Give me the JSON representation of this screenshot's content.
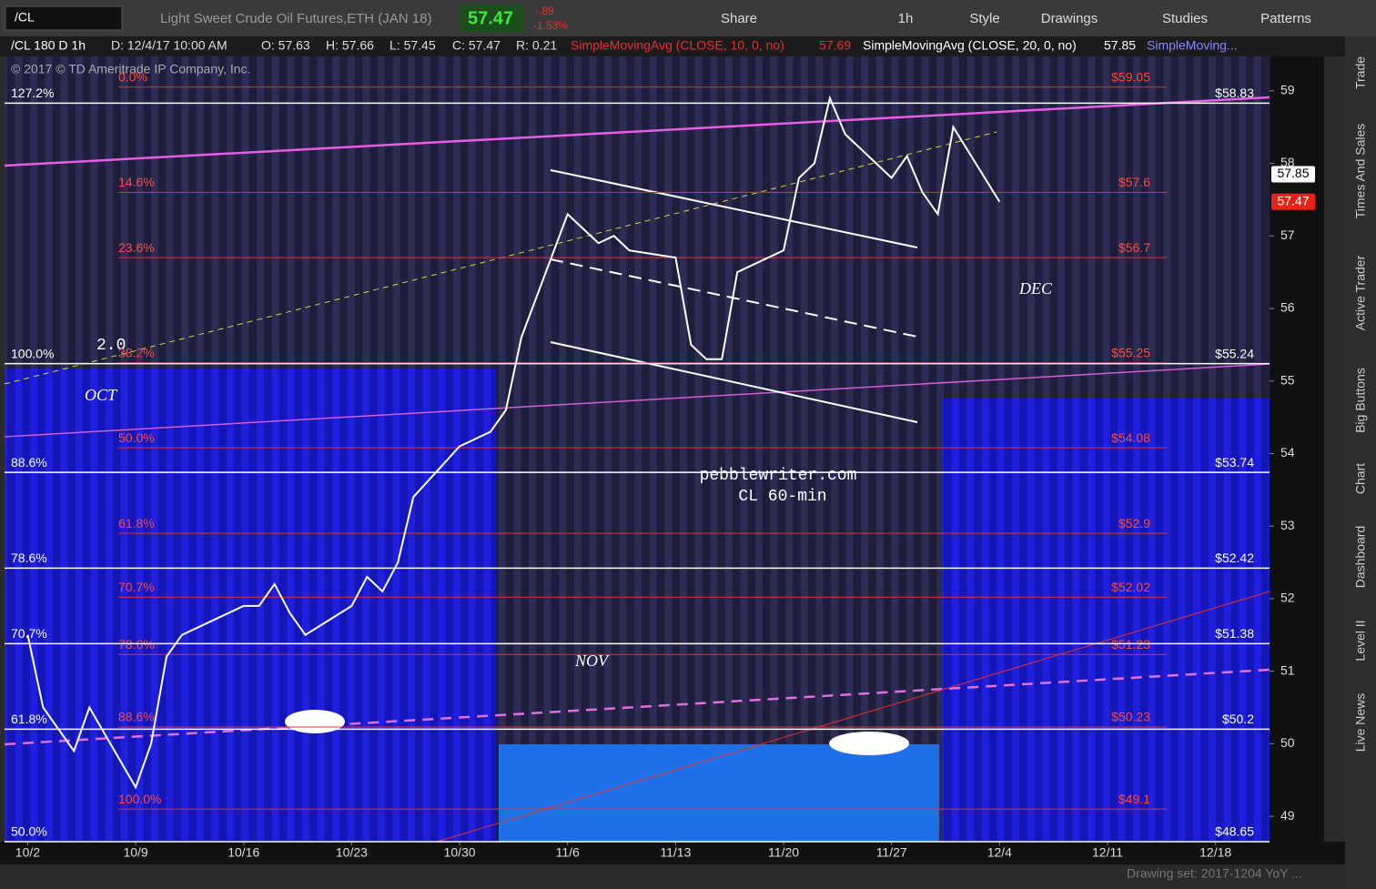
{
  "toolbar": {
    "symbol": "/CL",
    "description": "Light Sweet Crude Oil Futures,ETH (JAN 18)",
    "last": "57.47",
    "change": "-.89",
    "change_pct": "-1.53%",
    "buttons": [
      "Share",
      "1h",
      "Style",
      "Drawings",
      "Studies",
      "Patterns"
    ]
  },
  "header": {
    "items": [
      "/CL 180 D 1h",
      "D: 12/4/17 10:00 AM",
      "O: 57.63",
      "H: 57.66",
      "L: 57.45",
      "C: 57.47",
      "R: 0.21"
    ],
    "studies": [
      {
        "name": "SimpleMovingAvg (CLOSE, 10, 0, no)",
        "value": "57.69"
      },
      {
        "name": "SimpleMovingAvg (CLOSE, 20, 0, no)",
        "value": "57.85"
      }
    ],
    "more": "SimpleMoving..."
  },
  "copyright": "© 2017 © TD Ameritrade IP Company, Inc.",
  "side_tabs": [
    "Trade",
    "Times And Sales",
    "Active Trader",
    "Big Buttons",
    "Chart",
    "Dashboard",
    "Level II",
    "Live News"
  ],
  "footer": "Drawing set: 2017-1204 YoY ...",
  "chart_data": {
    "type": "line",
    "x": [
      0,
      1,
      2,
      3,
      4,
      7,
      8,
      9,
      10,
      11,
      14,
      15,
      16,
      17,
      18,
      21,
      22,
      23,
      24,
      25,
      28,
      29,
      30,
      31,
      32,
      35,
      36,
      37,
      38,
      39,
      42,
      43,
      44,
      45,
      46,
      49,
      50,
      51,
      52,
      53,
      56,
      57,
      58,
      59,
      60,
      63
    ],
    "series": [
      {
        "color": "#ffffff",
        "values": [
          51.5,
          50.5,
          50.2,
          49.9,
          50.5,
          49.4,
          50.0,
          51.2,
          51.5,
          51.6,
          51.9,
          51.9,
          52.2,
          51.8,
          51.5,
          51.9,
          52.3,
          52.1,
          52.5,
          53.4,
          54.1,
          54.2,
          54.3,
          54.6,
          55.6,
          57.3,
          57.1,
          56.9,
          57.0,
          56.8,
          56.7,
          55.5,
          55.3,
          55.3,
          56.5,
          56.8,
          57.8,
          58.0,
          58.9,
          58.4,
          57.8,
          58.1,
          57.6,
          57.3,
          58.5,
          57.47
        ]
      }
    ],
    "xlim": [
      -1.5,
      80.5
    ],
    "xticks": [
      {
        "value": 0,
        "label": "10/2"
      },
      {
        "value": 7,
        "label": "10/9"
      },
      {
        "value": 14,
        "label": "10/16"
      },
      {
        "value": 21,
        "label": "10/23"
      },
      {
        "value": 28,
        "label": "10/30"
      },
      {
        "value": 35,
        "label": "11/6"
      },
      {
        "value": 42,
        "label": "11/13"
      },
      {
        "value": 49,
        "label": "11/20"
      },
      {
        "value": 56,
        "label": "11/27"
      },
      {
        "value": 63,
        "label": "12/4"
      },
      {
        "value": 70,
        "label": "12/11"
      },
      {
        "value": 77,
        "label": "12/18"
      }
    ],
    "ylim": [
      48.65,
      59.75
    ],
    "yticks": [
      49,
      50,
      51,
      52,
      53,
      54,
      55,
      56,
      57,
      58,
      59
    ],
    "fib_red": [
      {
        "label": "0.0%",
        "value": 59.05,
        "value_label": "$59.05"
      },
      {
        "label": "14.6%",
        "value": 57.6,
        "value_label": "$57.6"
      },
      {
        "label": "23.6%",
        "value": 56.7,
        "value_label": "$56.7"
      },
      {
        "label": "38.2%",
        "value": 55.25,
        "value_label": "$55.25"
      },
      {
        "label": "50.0%",
        "value": 54.08,
        "value_label": "$54.08"
      },
      {
        "label": "61.8%",
        "value": 52.9,
        "value_label": "$52.9"
      },
      {
        "label": "70.7%",
        "value": 52.02,
        "value_label": "$52.02"
      },
      {
        "label": "78.6%",
        "value": 51.23,
        "value_label": "$51.23"
      },
      {
        "label": "88.6%",
        "value": 50.23,
        "value_label": "$50.23"
      },
      {
        "label": "100.0%",
        "value": 49.1,
        "value_label": "$49.1"
      }
    ],
    "fib_white": [
      {
        "label": "127.2%",
        "value": 58.83,
        "value_label": "$58.83"
      },
      {
        "label": "100.0%",
        "value": 55.24,
        "value_label": "$55.24"
      },
      {
        "label": "88.6%",
        "value": 53.74,
        "value_label": "$53.74"
      },
      {
        "label": "78.6%",
        "value": 52.42,
        "value_label": "$52.42"
      },
      {
        "label": "70.7%",
        "value": 51.38,
        "value_label": "$51.38"
      },
      {
        "label": "61.8%",
        "value": 50.2,
        "value_label": "$50.2"
      },
      {
        "label": "50.0%",
        "value": 48.65,
        "value_label": "$48.65"
      }
    ],
    "price_bubbles": [
      {
        "value": 57.85,
        "color": "#ffffff"
      },
      {
        "value": 57.47,
        "color": "#e8211b"
      }
    ],
    "annotations": [
      "OCT",
      "NOV",
      "DEC",
      "pebblewriter.com",
      "CL 60-min",
      "2.0"
    ]
  }
}
